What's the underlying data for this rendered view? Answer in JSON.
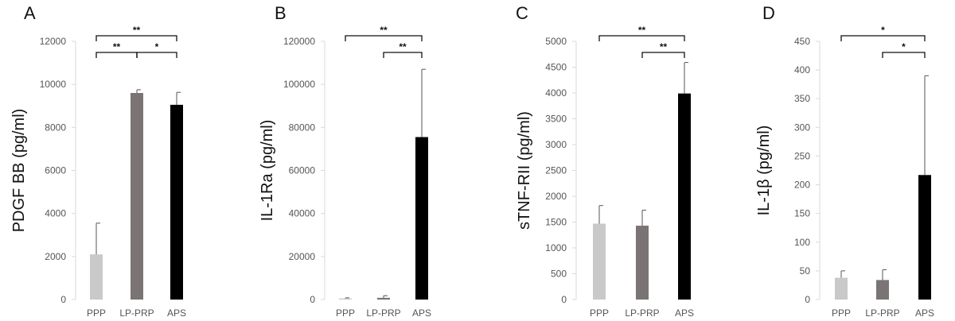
{
  "chart_data": [
    {
      "type": "bar",
      "panel": "A",
      "ylabel": "PDGF BB (pg/ml)",
      "categories": [
        "PPP",
        "LP-PRP",
        "APS"
      ],
      "values": [
        2100,
        9600,
        9050
      ],
      "errors": [
        1450,
        150,
        580
      ],
      "colors": [
        "#c9c9c9",
        "#7a7474",
        "#000000"
      ],
      "ylim": [
        0,
        12000
      ],
      "yticks": [
        0,
        2000,
        4000,
        6000,
        8000,
        10000,
        12000
      ],
      "ytick_labels": [
        "0",
        "2000",
        "4000",
        "6000",
        "8000",
        "10000",
        "12000"
      ],
      "significance": [
        {
          "from": 0,
          "to": 1,
          "label": "**",
          "level": 0
        },
        {
          "from": 1,
          "to": 2,
          "label": "*",
          "level": 0
        },
        {
          "from": 0,
          "to": 2,
          "label": "**",
          "level": 1
        }
      ]
    },
    {
      "type": "bar",
      "panel": "B",
      "ylabel": "IL-1Ra (pg/ml)",
      "categories": [
        "PPP",
        "LP-PRP",
        "APS"
      ],
      "values": [
        500,
        800,
        75500
      ],
      "errors": [
        300,
        1000,
        31500
      ],
      "colors": [
        "#c9c9c9",
        "#7a7474",
        "#000000"
      ],
      "ylim": [
        0,
        120000
      ],
      "yticks": [
        0,
        20000,
        40000,
        60000,
        80000,
        100000,
        120000
      ],
      "ytick_labels": [
        "0",
        "20000",
        "40000",
        "60000",
        "80000",
        "100000",
        "120000"
      ],
      "significance": [
        {
          "from": 1,
          "to": 2,
          "label": "**",
          "level": 0
        },
        {
          "from": 0,
          "to": 2,
          "label": "**",
          "level": 1
        }
      ]
    },
    {
      "type": "bar",
      "panel": "C",
      "ylabel": "sTNF-RII (pg/ml)",
      "categories": [
        "PPP",
        "LP-PRP",
        "APS"
      ],
      "values": [
        1470,
        1430,
        3990
      ],
      "errors": [
        350,
        300,
        600
      ],
      "colors": [
        "#c9c9c9",
        "#7a7474",
        "#000000"
      ],
      "ylim": [
        0,
        5000
      ],
      "yticks": [
        0,
        500,
        1000,
        1500,
        2000,
        2500,
        3000,
        3500,
        4000,
        4500,
        5000
      ],
      "ytick_labels": [
        "0",
        "500",
        "1000",
        "1500",
        "2000",
        "2500",
        "3000",
        "3500",
        "4000",
        "4500",
        "5000"
      ],
      "significance": [
        {
          "from": 1,
          "to": 2,
          "label": "**",
          "level": 0
        },
        {
          "from": 0,
          "to": 2,
          "label": "**",
          "level": 1
        }
      ]
    },
    {
      "type": "bar",
      "panel": "D",
      "ylabel": "IL-1β (pg/ml)",
      "categories": [
        "PPP",
        "LP-PRP",
        "APS"
      ],
      "values": [
        38,
        34,
        217
      ],
      "errors": [
        12,
        18,
        173
      ],
      "colors": [
        "#c9c9c9",
        "#7a7474",
        "#000000"
      ],
      "ylim": [
        0,
        450
      ],
      "yticks": [
        0,
        50,
        100,
        150,
        200,
        250,
        300,
        350,
        400,
        450
      ],
      "ytick_labels": [
        "0",
        "50",
        "100",
        "150",
        "200",
        "250",
        "300",
        "350",
        "400",
        "450"
      ],
      "significance": [
        {
          "from": 1,
          "to": 2,
          "label": "*",
          "level": 0
        },
        {
          "from": 0,
          "to": 2,
          "label": "*",
          "level": 1
        }
      ]
    }
  ]
}
